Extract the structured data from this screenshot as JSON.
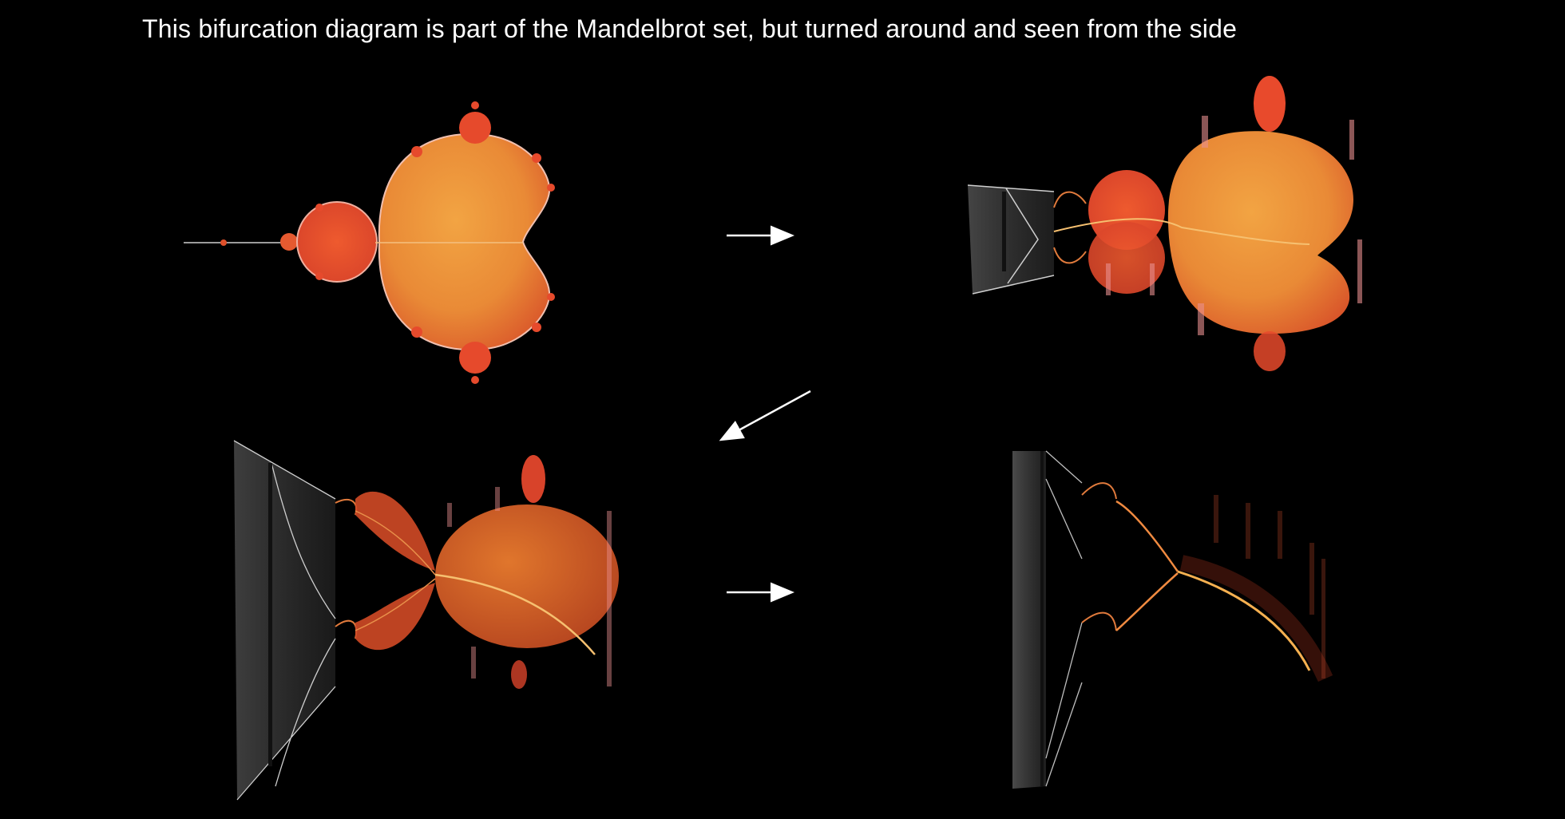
{
  "title": "This bifurcation diagram is part of the Mandelbrot set, but turned around and seen from the side",
  "colors": {
    "background": "#000000",
    "fractal_light": "#f0a040",
    "fractal_mid": "#e26b2c",
    "fractal_dark": "#c84022",
    "bifurcation_gray": "#9a9a9a",
    "arrow": "#ffffff"
  },
  "panels": [
    {
      "name": "mandelbrot-top-view",
      "description_icon": "mandelbrot-icon"
    },
    {
      "name": "mandelbrot-rotated-view",
      "description_icon": "mandelbrot-rotated-icon"
    },
    {
      "name": "mandelbrot-side-view",
      "description_icon": "mandelbrot-side-icon"
    },
    {
      "name": "bifurcation-diagram-view",
      "description_icon": "bifurcation-icon"
    }
  ],
  "arrows": [
    {
      "from": "mandelbrot-top-view",
      "to": "mandelbrot-rotated-view",
      "icon": "arrow-right-icon"
    },
    {
      "from": "mandelbrot-rotated-view",
      "to": "mandelbrot-side-view",
      "icon": "arrow-down-left-icon"
    },
    {
      "from": "mandelbrot-side-view",
      "to": "bifurcation-diagram-view",
      "icon": "arrow-right-icon"
    }
  ]
}
